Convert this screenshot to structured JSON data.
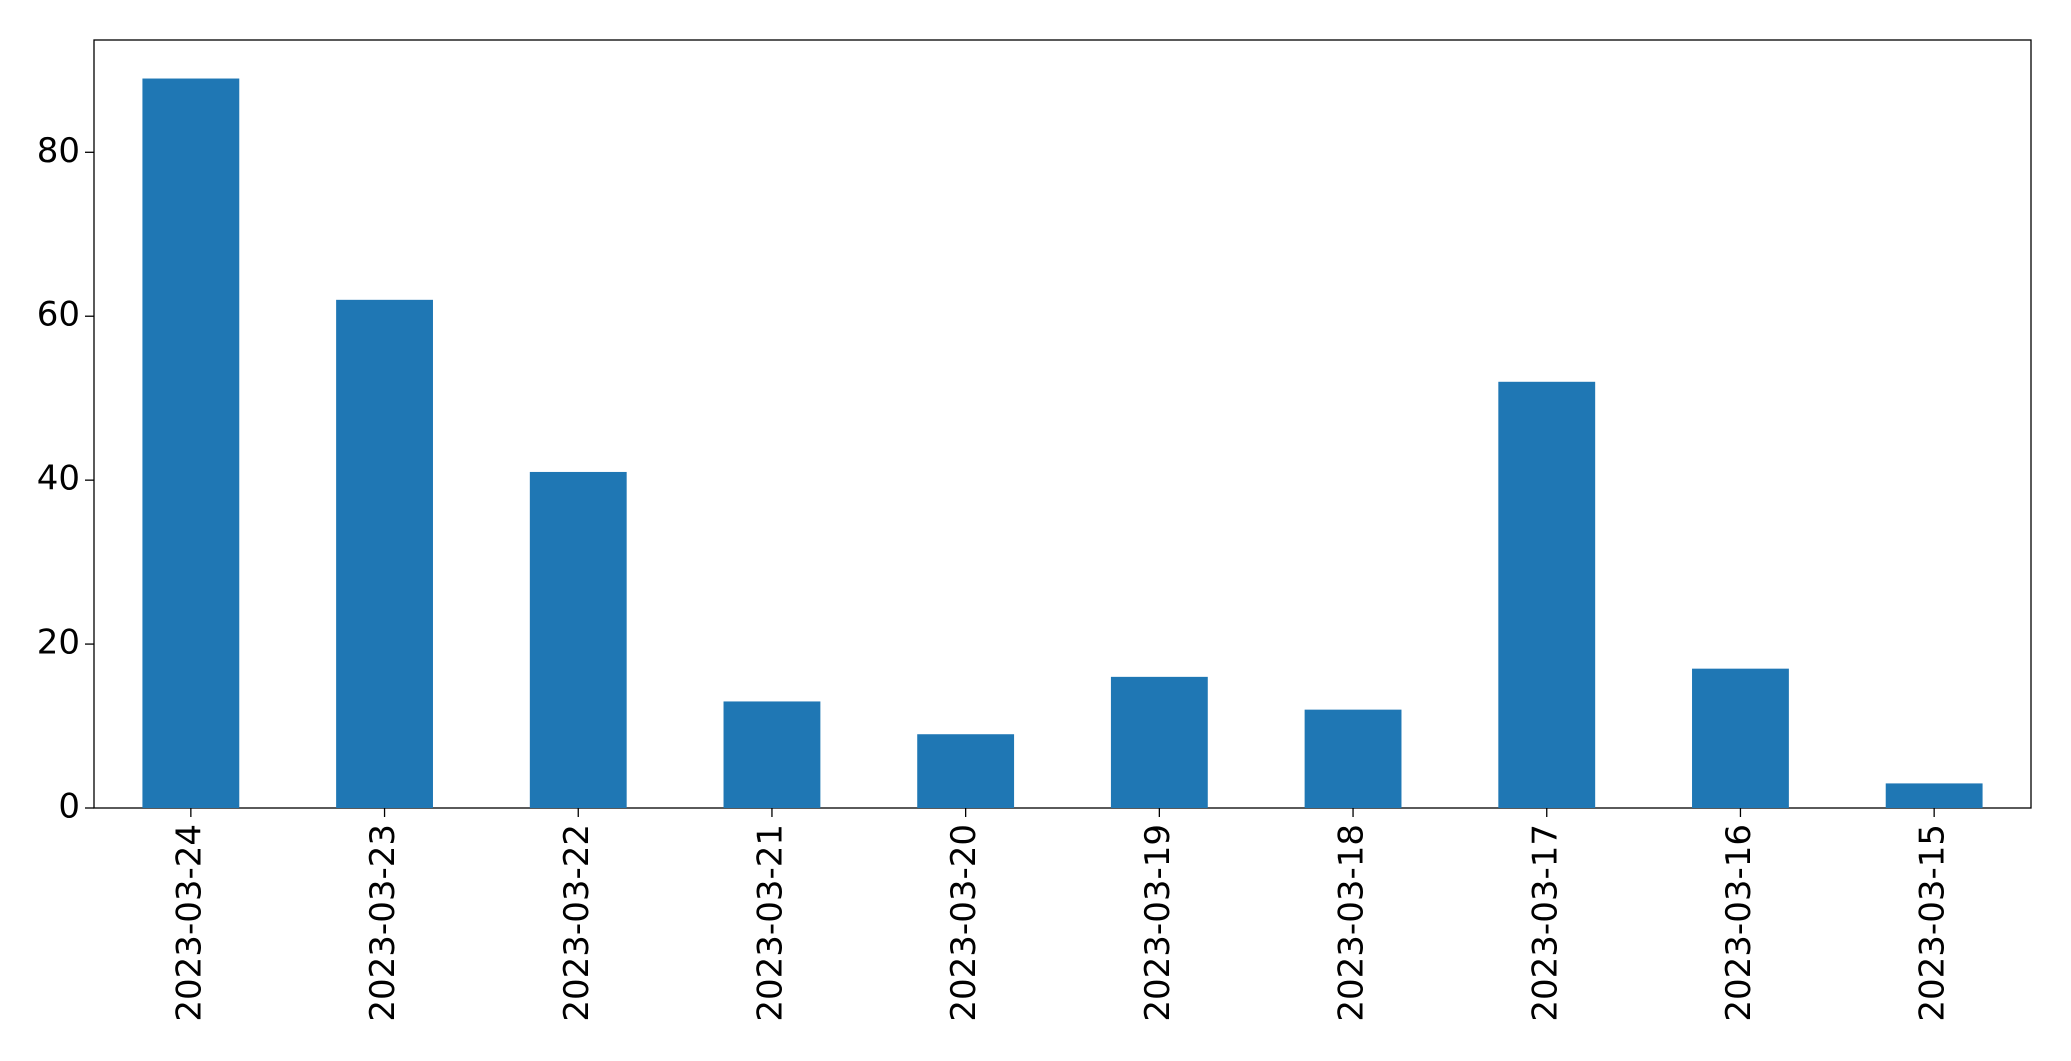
{
  "chart_data": {
    "type": "bar",
    "categories": [
      "2023-03-24",
      "2023-03-23",
      "2023-03-22",
      "2023-03-21",
      "2023-03-20",
      "2023-03-19",
      "2023-03-18",
      "2023-03-17",
      "2023-03-16",
      "2023-03-15"
    ],
    "values": [
      89,
      62,
      41,
      13,
      9,
      16,
      12,
      52,
      17,
      3
    ],
    "color": "#1f77b4",
    "ylim": [
      0,
      93.7
    ],
    "yticks": [
      0,
      20,
      40,
      60,
      80
    ],
    "grid": false
  }
}
